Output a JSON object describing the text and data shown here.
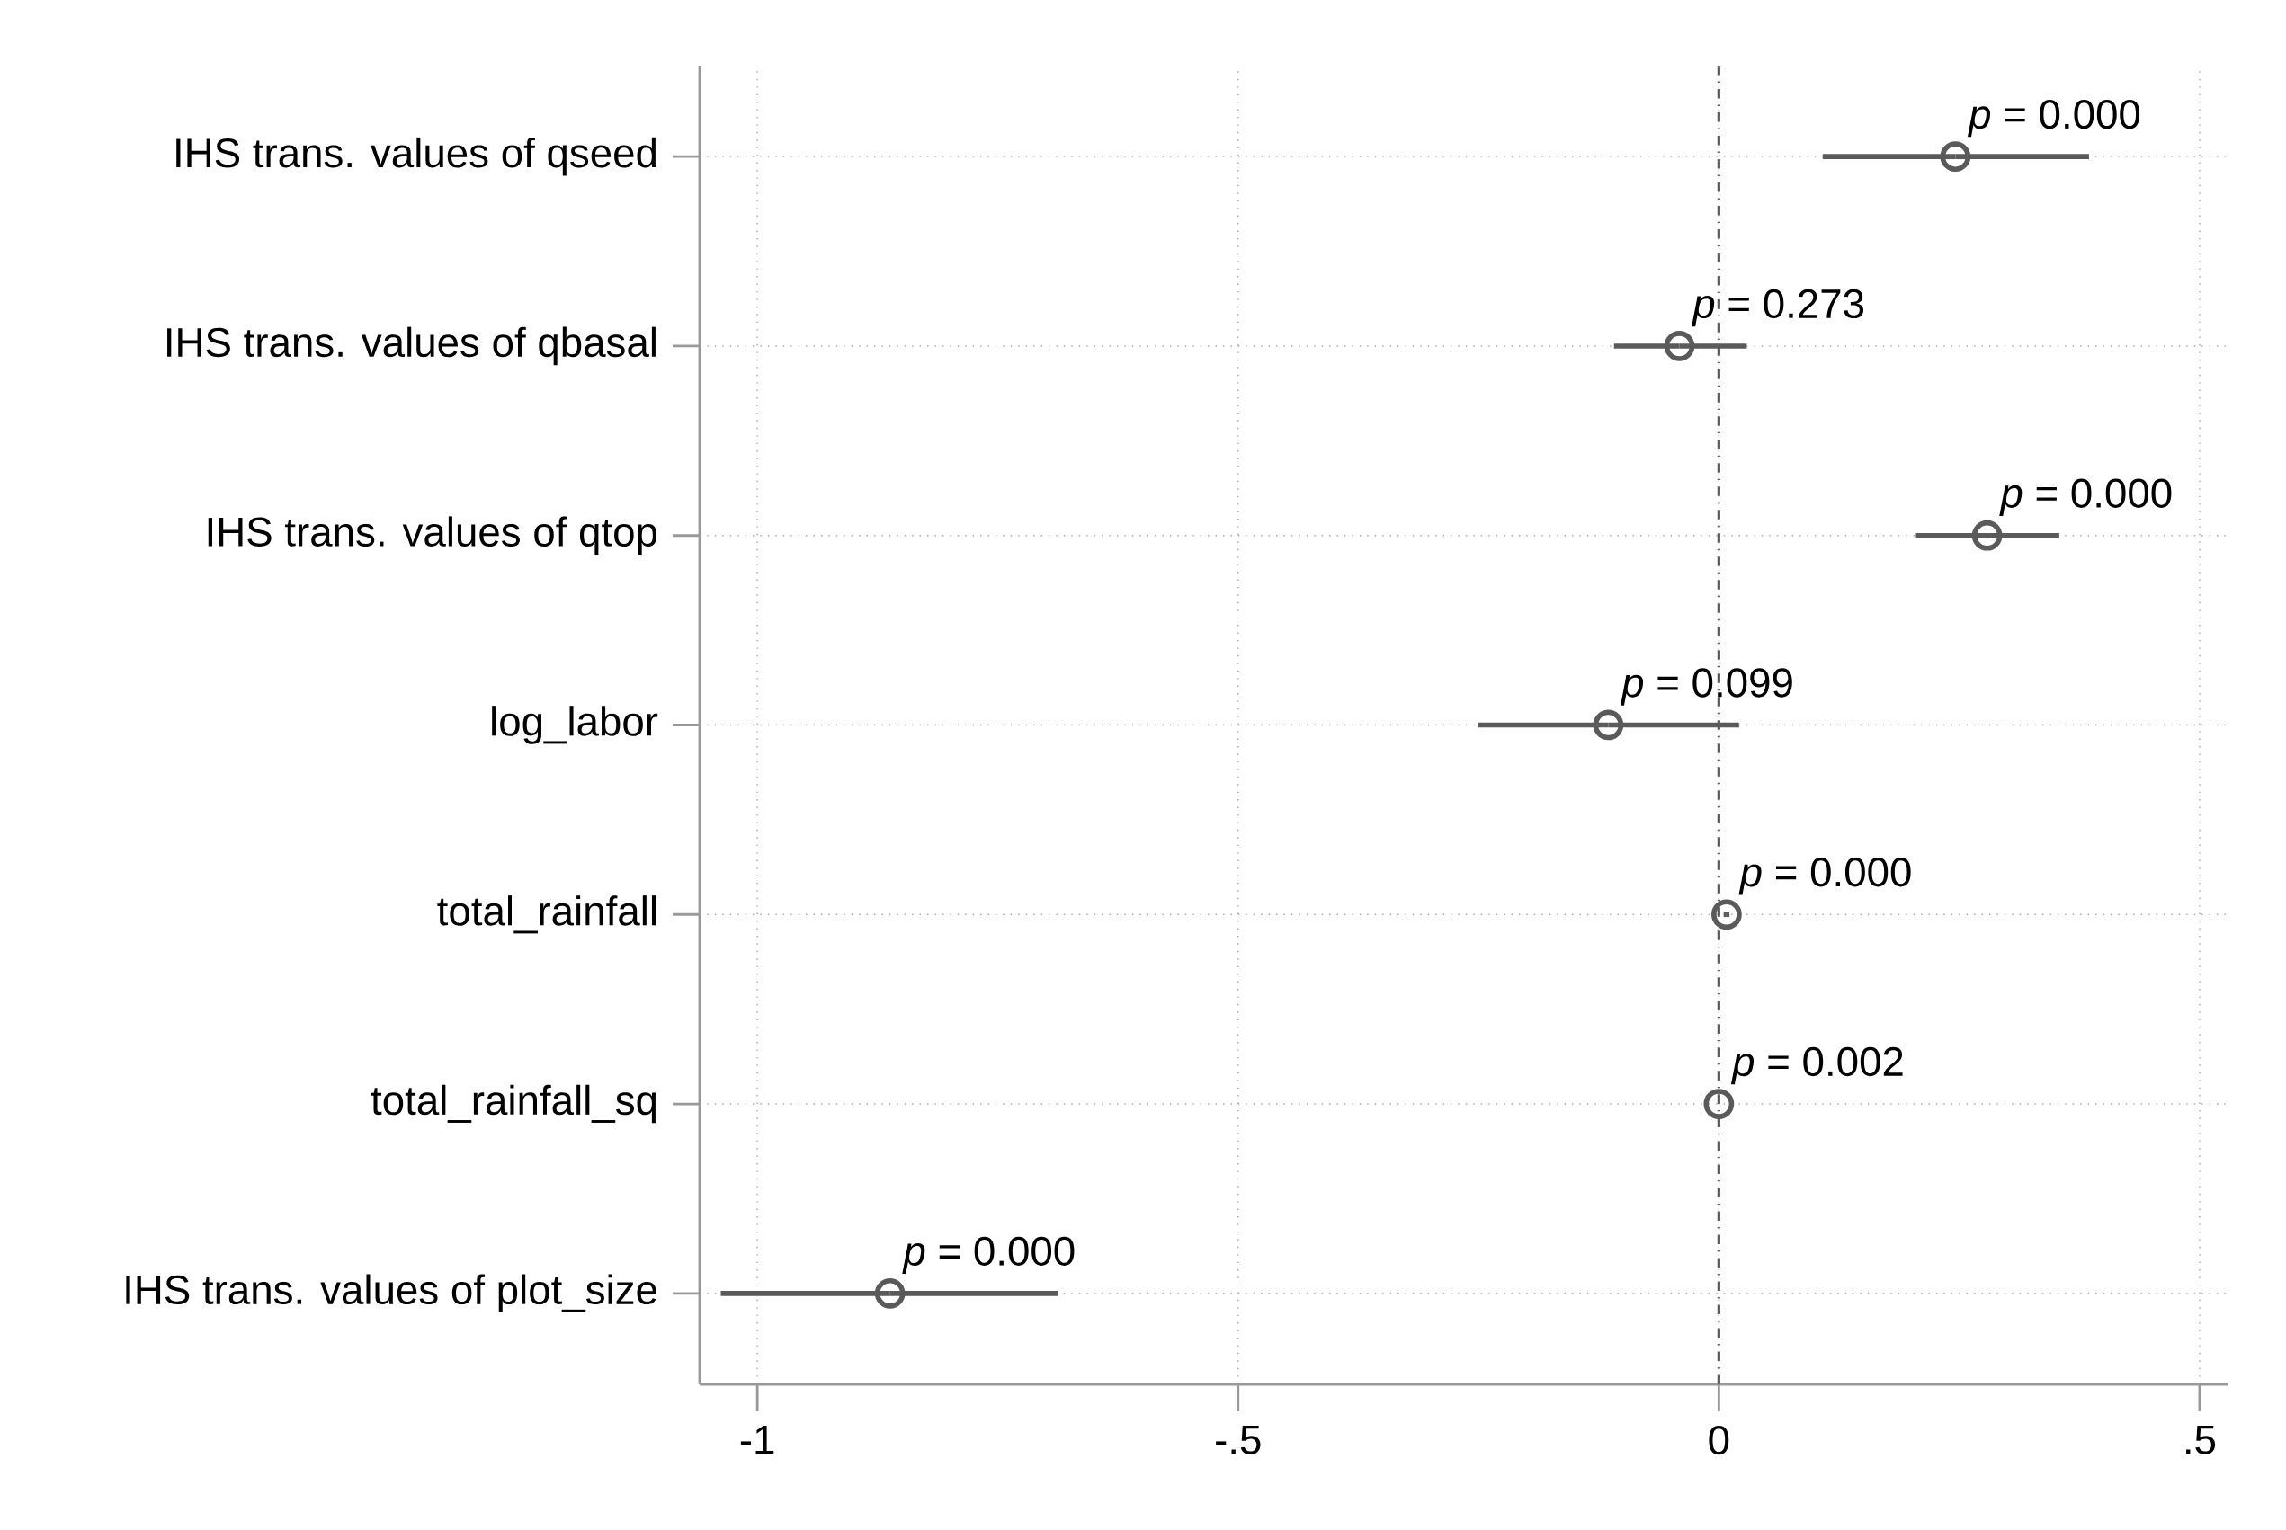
{
  "chart_data": {
    "type": "scatter",
    "orientation": "horizontal",
    "categories": [
      "IHS trans. values of qseed",
      "IHS trans. values of qbasal",
      "IHS trans. values of qtop",
      "log_labor",
      "total_rainfall",
      "total_rainfall_sq",
      "IHS trans. values of plot_size"
    ],
    "values": [
      0.246,
      -0.041,
      0.279,
      -0.115,
      0.008,
      0.0,
      -0.862
    ],
    "errors": [
      [
        0.108,
        0.385
      ],
      [
        -0.109,
        0.029
      ],
      [
        0.205,
        0.354
      ],
      [
        -0.25,
        0.021
      ],
      [
        0.005,
        0.011
      ],
      null,
      [
        -1.038,
        -0.687
      ]
    ],
    "color": "#5a5a5a",
    "marker": "circle",
    "grid": true,
    "xlim": [
      -1.06,
      0.53
    ],
    "xticks": [
      {
        "value": -1,
        "label": "-1"
      },
      {
        "value": -0.5,
        "label": "-.5"
      },
      0,
      {
        "value": 0.5,
        "label": ".5"
      }
    ],
    "ref_lines": [
      {
        "axis": "x",
        "value": 0,
        "color": "#5a5a5a",
        "line_style": "dashed"
      }
    ],
    "annotations": [
      {
        "text": "*p* = 0.000",
        "x": 0.246,
        "y": "IHS trans. values of qseed"
      },
      {
        "text": "*p* = 0.273",
        "x": -0.041,
        "y": "IHS trans. values of qbasal"
      },
      {
        "text": "*p* = 0.000",
        "x": 0.279,
        "y": "IHS trans. values of qtop"
      },
      {
        "text": "*p* = 0.099",
        "x": -0.115,
        "y": "log_labor"
      },
      {
        "text": "*p* = 0.000",
        "x": 0.008,
        "y": "total_rainfall"
      },
      {
        "text": "*p* = 0.002",
        "x": 0.0,
        "y": "total_rainfall_sq"
      },
      {
        "text": "*p* = 0.000",
        "x": -0.862,
        "y": "IHS trans. values of plot_size"
      }
    ]
  }
}
